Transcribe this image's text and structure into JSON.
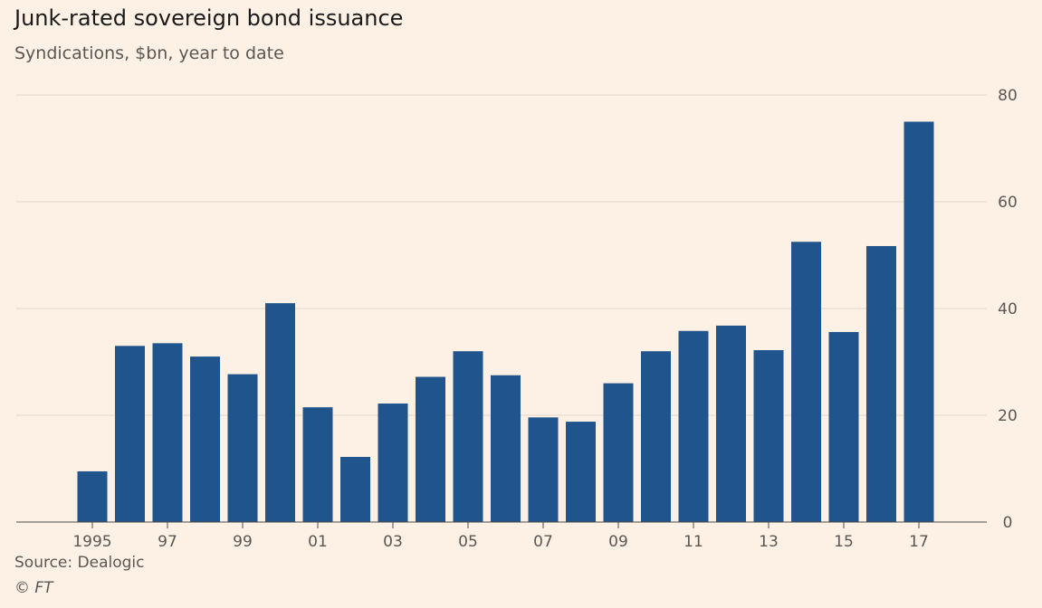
{
  "chart_data": {
    "type": "bar",
    "title": "Junk-rated sovereign bond issuance",
    "subtitle": "Syndications, $bn, year to date",
    "categories": [
      "1995",
      "1996",
      "1997",
      "1998",
      "1999",
      "2000",
      "2001",
      "2002",
      "2003",
      "2004",
      "2005",
      "2006",
      "2007",
      "2008",
      "2009",
      "2010",
      "2011",
      "2012",
      "2013",
      "2014",
      "2015",
      "2016",
      "2017"
    ],
    "tick_labels": [
      "1995",
      "",
      "97",
      "",
      "99",
      "",
      "01",
      "",
      "03",
      "",
      "05",
      "",
      "07",
      "",
      "09",
      "",
      "11",
      "",
      "13",
      "",
      "15",
      "",
      "17"
    ],
    "values": [
      9.5,
      33,
      33.5,
      31,
      27.7,
      41,
      21.5,
      12.2,
      22.2,
      27.2,
      32,
      27.5,
      19.6,
      18.8,
      26,
      32,
      35.8,
      36.8,
      32.2,
      52.5,
      35.6,
      51.7,
      75
    ],
    "ylim": [
      0,
      80
    ],
    "yticks": [
      0,
      20,
      40,
      60,
      80
    ],
    "y_axis_side": "right",
    "grid": true,
    "xlabel": "",
    "ylabel": "",
    "bar_color": "#1f558c",
    "source": "Source: Dealogic",
    "copyright": "© FT"
  }
}
